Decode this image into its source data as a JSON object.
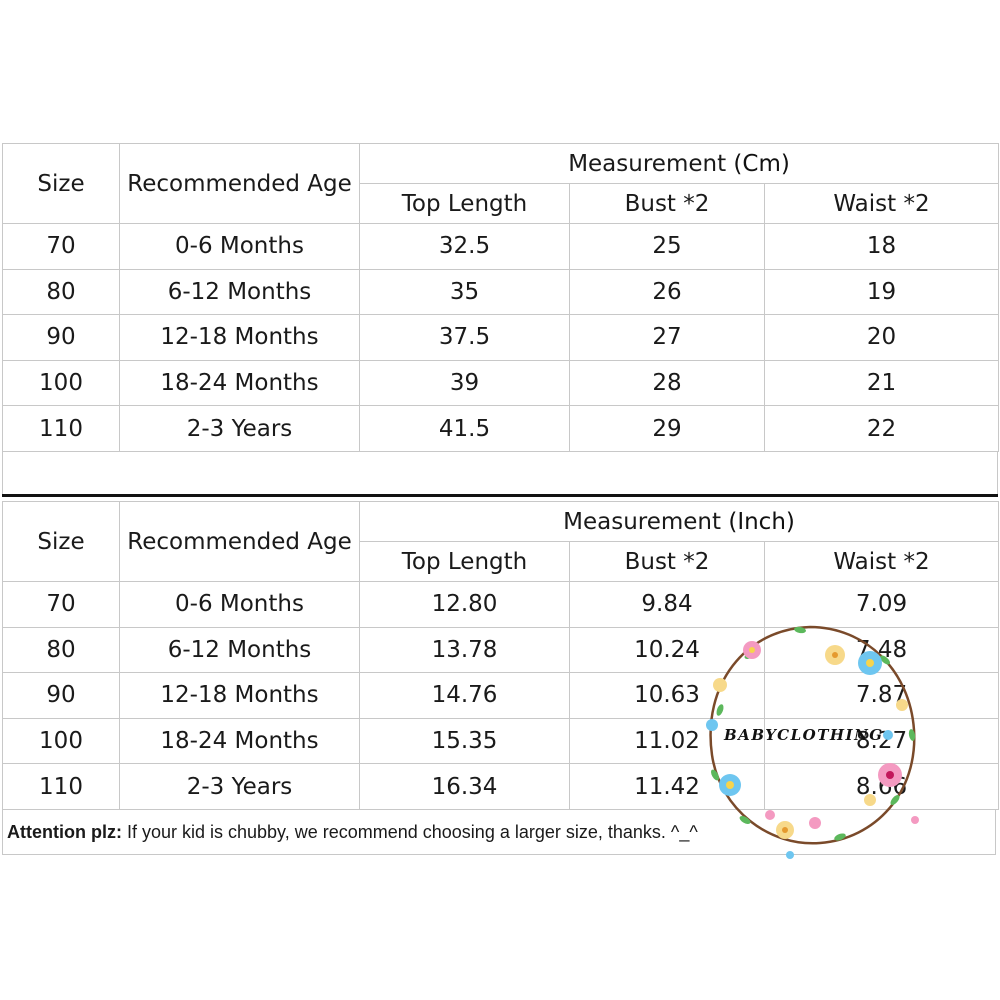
{
  "tables": [
    {
      "header": {
        "size": "Size",
        "age": "Recommended Age",
        "group_label": "Measurement",
        "unit": "(Cm)",
        "top_length": "Top Length",
        "bust": "Bust *2",
        "waist": "Waist *2"
      },
      "rows": [
        [
          "70",
          "0-6 Months",
          "32.5",
          "25",
          "18"
        ],
        [
          "80",
          "6-12 Months",
          "35",
          "26",
          "19"
        ],
        [
          "90",
          "12-18 Months",
          "37.5",
          "27",
          "20"
        ],
        [
          "100",
          "18-24 Months",
          "39",
          "28",
          "21"
        ],
        [
          "110",
          "2-3 Years",
          "41.5",
          "29",
          "22"
        ]
      ]
    },
    {
      "header": {
        "size": "Size",
        "age": "Recommended Age",
        "group_label": "Measurement",
        "unit": "(Inch)",
        "top_length": "Top Length",
        "bust": "Bust *2",
        "waist": "Waist *2"
      },
      "rows": [
        [
          "70",
          "0-6 Months",
          "12.80",
          "9.84",
          "7.09"
        ],
        [
          "80",
          "6-12 Months",
          "13.78",
          "10.24",
          "7.48"
        ],
        [
          "90",
          "12-18 Months",
          "14.76",
          "10.63",
          "7.87"
        ],
        [
          "100",
          "18-24 Months",
          "15.35",
          "11.02",
          "8.27"
        ],
        [
          "110",
          "2-3 Years",
          "16.34",
          "11.42",
          "8.66"
        ]
      ]
    }
  ],
  "note": {
    "label": "Attention plz:",
    "text": "If your kid is chubby, we recommend choosing a larger size, thanks. ^_^"
  },
  "watermark": {
    "text": "BABYCLOTHING",
    "icon": "floral-wreath-logo"
  }
}
